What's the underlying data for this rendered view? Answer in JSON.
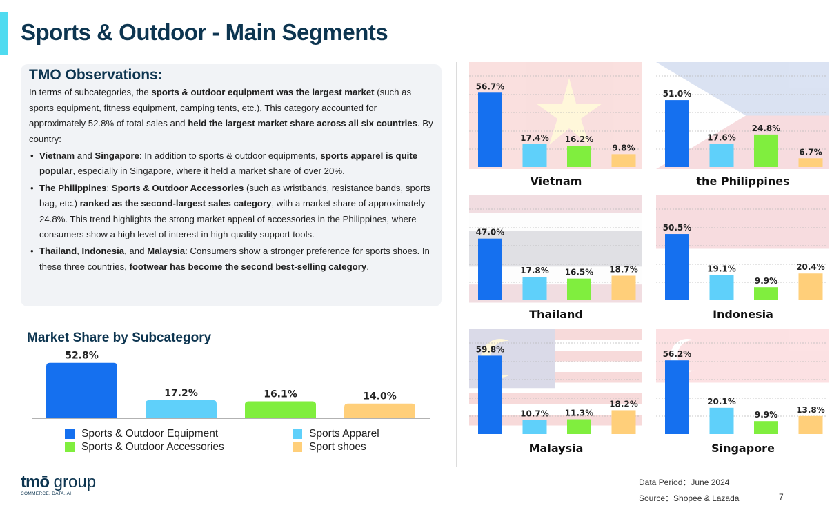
{
  "page": {
    "title": "Sports & Outdoor - Main Segments",
    "page_number": "7"
  },
  "observations": {
    "title": "TMO Observations:",
    "intro": [
      {
        "t": "In terms of subcategories, the ",
        "b": false
      },
      {
        "t": "sports & outdoor equipment was the largest market",
        "b": true
      },
      {
        "t": " (such as sports equipment, fitness equipment, camping tents, etc.), This category accounted for approximately 52.8% of total sales and ",
        "b": false
      },
      {
        "t": "held the largest market share across all six countries",
        "b": true
      },
      {
        "t": ". By country:",
        "b": false
      }
    ],
    "bullets": [
      [
        {
          "t": "Vietnam",
          "b": true
        },
        {
          "t": " and ",
          "b": false
        },
        {
          "t": "Singapore",
          "b": true
        },
        {
          "t": ": In addition to sports & outdoor equipments, ",
          "b": false
        },
        {
          "t": "sports apparel is quite popular",
          "b": true
        },
        {
          "t": ", especially in Singapore, where it held a market share of over 20%.",
          "b": false
        }
      ],
      [
        {
          "t": "The Philippines",
          "b": true
        },
        {
          "t": ": ",
          "b": false
        },
        {
          "t": "Sports & Outdoor Accessories",
          "b": true
        },
        {
          "t": " (such as wristbands, resistance bands, sports bag, etc.) ",
          "b": false
        },
        {
          "t": "ranked as the second-largest sales category",
          "b": true
        },
        {
          "t": ", with a market share of approximately 24.8%. This trend highlights the strong market appeal of accessories in the Philippines, where consumers show a high level of interest in high-quality support tools.",
          "b": false
        }
      ],
      [
        {
          "t": "Thailand",
          "b": true
        },
        {
          "t": ", ",
          "b": false
        },
        {
          "t": "Indonesia",
          "b": true
        },
        {
          "t": ", and ",
          "b": false
        },
        {
          "t": "Malaysia",
          "b": true
        },
        {
          "t": ": Consumers show a stronger preference for sports shoes. In these three countries, ",
          "b": false
        },
        {
          "t": "footwear has become the second best-selling category",
          "b": true
        },
        {
          "t": ".",
          "b": false
        }
      ]
    ]
  },
  "market_share": {
    "title": "Market Share by Subcategory"
  },
  "colors": {
    "equipment": "#1570ef",
    "apparel": "#5fd0fa",
    "accessories": "#80ee3e",
    "shoes": "#ffcf7a",
    "title": "#0d3550",
    "accent": "#4fdbf0"
  },
  "legend": [
    {
      "label": "Sports & Outdoor Equipment",
      "color": "#1570ef"
    },
    {
      "label": "Sports Apparel",
      "color": "#5fd0fa"
    },
    {
      "label": "Sports & Outdoor Accessories",
      "color": "#80ee3e"
    },
    {
      "label": "Sport shoes",
      "color": "#ffcf7a"
    }
  ],
  "chart_data": [
    {
      "type": "bar",
      "id": "overall",
      "title": "Market Share by Subcategory",
      "categories": [
        "Sports & Outdoor Equipment",
        "Sports Apparel",
        "Sports & Outdoor Accessories",
        "Sport shoes"
      ],
      "values": [
        52.8,
        17.2,
        16.1,
        14.0
      ]
    },
    {
      "type": "bar",
      "id": "vietnam",
      "title": "Vietnam",
      "flag": "vietnam",
      "categories": [
        "Sports & Outdoor Equipment",
        "Sports Apparel",
        "Sports & Outdoor Accessories",
        "Sport shoes"
      ],
      "values": [
        56.7,
        17.4,
        16.2,
        9.8
      ]
    },
    {
      "type": "bar",
      "id": "philippines",
      "title": "the Philippines",
      "flag": "philippines",
      "categories": [
        "Sports & Outdoor Equipment",
        "Sports Apparel",
        "Sports & Outdoor Accessories",
        "Sport shoes"
      ],
      "values": [
        51.0,
        17.6,
        24.8,
        6.7
      ]
    },
    {
      "type": "bar",
      "id": "thailand",
      "title": "Thailand",
      "flag": "thailand",
      "categories": [
        "Sports & Outdoor Equipment",
        "Sports Apparel",
        "Sports & Outdoor Accessories",
        "Sport shoes"
      ],
      "values": [
        47.0,
        17.8,
        16.5,
        18.7
      ]
    },
    {
      "type": "bar",
      "id": "indonesia",
      "title": "Indonesia",
      "flag": "indonesia",
      "categories": [
        "Sports & Outdoor Equipment",
        "Sports Apparel",
        "Sports & Outdoor Accessories",
        "Sport shoes"
      ],
      "values": [
        50.5,
        19.1,
        9.9,
        20.4
      ]
    },
    {
      "type": "bar",
      "id": "malaysia",
      "title": "Malaysia",
      "flag": "malaysia",
      "categories": [
        "Sports & Outdoor Equipment",
        "Sports Apparel",
        "Sports & Outdoor Accessories",
        "Sport shoes"
      ],
      "values": [
        59.8,
        10.7,
        11.3,
        18.2
      ]
    },
    {
      "type": "bar",
      "id": "singapore",
      "title": "Singapore",
      "flag": "singapore",
      "categories": [
        "Sports & Outdoor Equipment",
        "Sports Apparel",
        "Sports & Outdoor Accessories",
        "Sport shoes"
      ],
      "values": [
        56.2,
        20.1,
        9.9,
        13.8
      ]
    }
  ],
  "footer": {
    "logo_main": "tmō",
    "logo_group": " group",
    "logo_tagline": "COMMERCE. DATA. AI.",
    "data_period": "Data Period：June 2024",
    "source": "Source：Shopee & Lazada"
  }
}
